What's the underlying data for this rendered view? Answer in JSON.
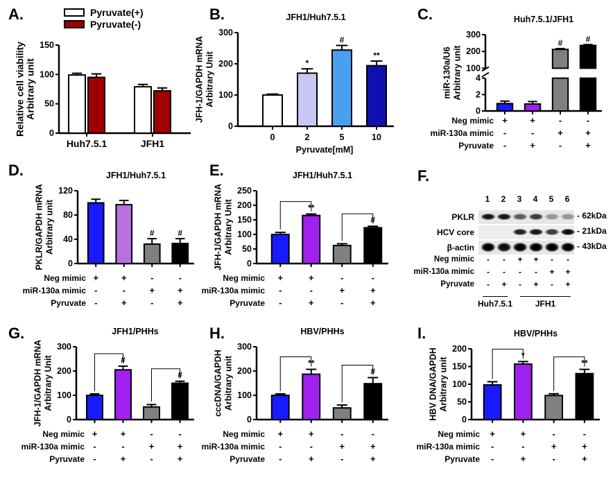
{
  "chart_data": [
    {
      "id": "A",
      "type": "bar",
      "letter": "A.",
      "title": "",
      "ylabel": [
        "Relative cell viability",
        "Arbitrary unit"
      ],
      "ylim": [
        0,
        150
      ],
      "yticks": [
        "0",
        "50",
        "100",
        "150"
      ],
      "ytick_values": [
        0,
        50,
        100,
        150
      ],
      "categories": [
        "Huh7.5.1",
        "JFH1"
      ],
      "legend": {
        "placement": "top",
        "entries": [
          "Pyruvate(+)",
          "Pyruvate(-)"
        ]
      },
      "series": [
        {
          "name": "Pyruvate(+)",
          "color": "#ffffff",
          "values": [
            99,
            79
          ],
          "errors": [
            3,
            4
          ]
        },
        {
          "name": "Pyruvate(-)",
          "color": "#a00000",
          "values": [
            95,
            72
          ],
          "errors": [
            6,
            5
          ]
        }
      ]
    },
    {
      "id": "B",
      "type": "bar",
      "letter": "B.",
      "title": "JFH1/Huh7.5.1",
      "ylabel": [
        "JFH-1/GAPDH mRNA",
        "Arbitrary Unit"
      ],
      "xlabel": "Pyruvate[mM]",
      "ylim": [
        0,
        300
      ],
      "yticks": [
        "0",
        "100",
        "200",
        "300"
      ],
      "ytick_values": [
        0,
        100,
        200,
        300
      ],
      "categories": [
        "0",
        "2",
        "5",
        "10"
      ],
      "values": [
        100,
        170,
        244,
        194
      ],
      "errors": [
        3,
        14,
        15,
        15
      ],
      "colors": [
        "#ffffff",
        "#c8c8f4",
        "#4aa0f0",
        "#1010b0"
      ],
      "annotations": [
        "",
        "*",
        "#",
        "**"
      ]
    },
    {
      "id": "C",
      "type": "bar",
      "letter": "C.",
      "title": "Huh7.5.1/JFH1",
      "ylabel": [
        "miR-130a/U6",
        "Arbitrary unit"
      ],
      "axis_break": [
        4,
        100
      ],
      "yticks": [
        "0",
        "2",
        "4",
        "100",
        "200",
        "300"
      ],
      "ytick_values": [
        0,
        2,
        4,
        100,
        200,
        300
      ],
      "conditions": [
        {
          "label": "Neg mimic",
          "signs": [
            "+",
            "+",
            "-",
            "-"
          ]
        },
        {
          "label": "miR-130a mimic",
          "signs": [
            "-",
            "-",
            "+",
            "+"
          ]
        },
        {
          "label": "Pyruvate",
          "signs": [
            "-",
            "+",
            "-",
            "+"
          ]
        }
      ],
      "values": [
        0.9,
        0.85,
        212,
        236
      ],
      "errors": [
        0.3,
        0.3,
        5,
        5
      ],
      "colors": [
        "#1a1aff",
        "#a020f0",
        "#808080",
        "#000000"
      ],
      "annotations": [
        "",
        "",
        "#",
        "#"
      ]
    },
    {
      "id": "D",
      "type": "bar",
      "letter": "D.",
      "title": "JFH1/Huh7.5.1",
      "ylabel": [
        "PKLR/GAPDH mRNA",
        "Arbitrary unit"
      ],
      "ylim": [
        0,
        120
      ],
      "yticks": [
        "0",
        "40",
        "80",
        "120"
      ],
      "ytick_values": [
        0,
        40,
        80,
        120
      ],
      "conditions": [
        {
          "label": "Neg mimic",
          "signs": [
            "+",
            "+",
            "-",
            "-"
          ]
        },
        {
          "label": "miR-130a mimic",
          "signs": [
            "-",
            "-",
            "+",
            "+"
          ]
        },
        {
          "label": "Pyruvate",
          "signs": [
            "-",
            "+",
            "-",
            "+"
          ]
        }
      ],
      "values": [
        100,
        97,
        32,
        33
      ],
      "errors": [
        6,
        7,
        9,
        8
      ],
      "colors": [
        "#1a1aff",
        "#b870e0",
        "#808080",
        "#000000"
      ],
      "annotations": [
        "",
        "",
        "#",
        "#"
      ]
    },
    {
      "id": "E",
      "type": "bar",
      "letter": "E.",
      "title": "JFH1/Huh7.5.1",
      "ylabel": [
        "JFH-1/GAPDH mRNA",
        "Arbitrary Unit"
      ],
      "ylim": [
        0,
        250
      ],
      "yticks": [
        "0",
        "50",
        "100",
        "150",
        "200",
        "250"
      ],
      "ytick_values": [
        0,
        50,
        100,
        150,
        200,
        250
      ],
      "conditions": [
        {
          "label": "Neg mimic",
          "signs": [
            "+",
            "+",
            "-",
            "-"
          ]
        },
        {
          "label": "miR-130a mimic",
          "signs": [
            "-",
            "-",
            "+",
            "+"
          ]
        },
        {
          "label": "Pyruvate",
          "signs": [
            "-",
            "+",
            "-",
            "+"
          ]
        }
      ],
      "values": [
        100,
        165,
        62,
        123
      ],
      "errors": [
        7,
        5,
        6,
        5
      ],
      "colors": [
        "#1a1aff",
        "#a020f0",
        "#808080",
        "#000000"
      ],
      "brackets": [
        {
          "from": 0,
          "to": 1,
          "label": "**"
        },
        {
          "from": 2,
          "to": 3,
          "label": "#"
        }
      ]
    },
    {
      "id": "G",
      "type": "bar",
      "letter": "G.",
      "title": "JFH1/PHHs",
      "ylabel": [
        "JFH-1/GAPDH mRNA",
        "Arbitrary Unit"
      ],
      "ylim": [
        0,
        300
      ],
      "yticks": [
        "0",
        "100",
        "200",
        "300"
      ],
      "ytick_values": [
        0,
        100,
        200,
        300
      ],
      "conditions": [
        {
          "label": "Neg mimic",
          "signs": [
            "+",
            "+",
            "-",
            "-"
          ]
        },
        {
          "label": "miR-130a mimic",
          "signs": [
            "-",
            "-",
            "+",
            "+"
          ]
        },
        {
          "label": "Pyruvate",
          "signs": [
            "-",
            "+",
            "-",
            "+"
          ]
        }
      ],
      "values": [
        100,
        205,
        52,
        150
      ],
      "errors": [
        6,
        15,
        10,
        8
      ],
      "colors": [
        "#1a1aff",
        "#a020f0",
        "#808080",
        "#000000"
      ],
      "brackets": [
        {
          "from": 0,
          "to": 1,
          "label": "#"
        },
        {
          "from": 2,
          "to": 3,
          "label": "#"
        }
      ]
    },
    {
      "id": "H",
      "type": "bar",
      "letter": "H.",
      "title": "HBV/PHHs",
      "ylabel": [
        "cccDNA/GAPDH",
        "Arbitrary unit"
      ],
      "ylim": [
        0,
        300
      ],
      "yticks": [
        "0",
        "100",
        "200",
        "300"
      ],
      "ytick_values": [
        0,
        100,
        200,
        300
      ],
      "conditions": [
        {
          "label": "Neg mimic",
          "signs": [
            "+",
            "+",
            "-",
            "-"
          ]
        },
        {
          "label": "miR-130a mimic",
          "signs": [
            "-",
            "-",
            "+",
            "+"
          ]
        },
        {
          "label": "Pyruvate",
          "signs": [
            "-",
            "+",
            "-",
            "+"
          ]
        }
      ],
      "values": [
        100,
        187,
        48,
        148
      ],
      "errors": [
        6,
        20,
        12,
        25
      ],
      "colors": [
        "#1a1aff",
        "#a020f0",
        "#808080",
        "#000000"
      ],
      "brackets": [
        {
          "from": 0,
          "to": 1,
          "label": "**"
        },
        {
          "from": 2,
          "to": 3,
          "label": "#"
        }
      ]
    },
    {
      "id": "I",
      "type": "bar",
      "letter": "I.",
      "title": "HBV/PHHs",
      "ylabel": [
        "HBV DNA/GAPDH",
        "Arbitrary unit"
      ],
      "ylim": [
        0,
        200
      ],
      "yticks": [
        "0",
        "50",
        "100",
        "150",
        "200"
      ],
      "ytick_values": [
        0,
        50,
        100,
        150,
        200
      ],
      "conditions": [
        {
          "label": "Neg mimic",
          "signs": [
            "+",
            "+",
            "-",
            "-"
          ]
        },
        {
          "label": "miR-130a mimic",
          "signs": [
            "-",
            "-",
            "+",
            "+"
          ]
        },
        {
          "label": "Pyruvate",
          "signs": [
            "-",
            "+",
            "-",
            "+"
          ]
        }
      ],
      "values": [
        98,
        157,
        68,
        130
      ],
      "errors": [
        9,
        7,
        5,
        12
      ],
      "colors": [
        "#1a1aff",
        "#a020f0",
        "#808080",
        "#000000"
      ],
      "brackets": [
        {
          "from": 0,
          "to": 1,
          "label": "*"
        },
        {
          "from": 2,
          "to": 3,
          "label": "**"
        }
      ]
    }
  ],
  "blot": {
    "letter": "F.",
    "lanes": [
      "1",
      "2",
      "3",
      "4",
      "5",
      "6"
    ],
    "rows": [
      {
        "label": "PKLR",
        "kda": "- 62kDa",
        "intensity": [
          0.9,
          0.9,
          0.6,
          0.75,
          0.35,
          0.35
        ]
      },
      {
        "label": "HCV core",
        "kda": "- 21kDa",
        "intensity": [
          0,
          0,
          0.85,
          0.9,
          0.75,
          0.95
        ]
      },
      {
        "label": "β-actin",
        "kda": "- 43kDa",
        "intensity": [
          1,
          0.95,
          1,
          1,
          1,
          1
        ]
      }
    ],
    "conditions": [
      {
        "label": "Neg mimic",
        "signs": [
          "-",
          "-",
          "+",
          "+",
          "-",
          "-"
        ]
      },
      {
        "label": "miR-130a mimic",
        "signs": [
          "-",
          "-",
          "-",
          "-",
          "+",
          "+"
        ]
      },
      {
        "label": "Pyruvate",
        "signs": [
          "-",
          "+",
          "-",
          "+",
          "-",
          "+"
        ]
      }
    ],
    "groups": [
      "Huh7.5.1",
      "JFH1"
    ]
  }
}
